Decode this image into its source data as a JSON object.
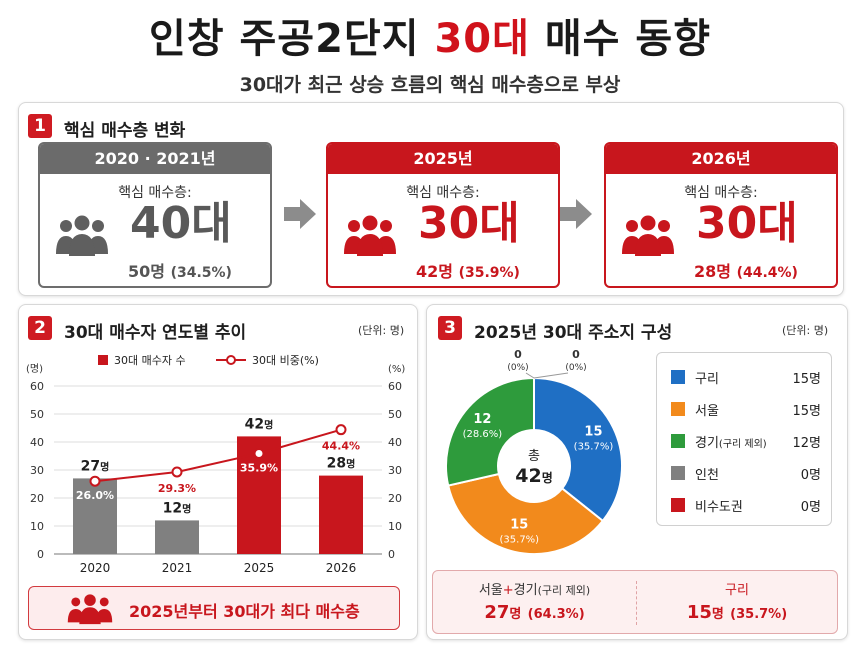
{
  "header": {
    "title_a": "인창 주공2단지",
    "title_accent": "30대",
    "title_b": "매수 동향",
    "subtitle": "30대가 최근 상승 흐름의 핵심 매수층으로 부상"
  },
  "section1": {
    "num": "1",
    "title": "핵심 매수층 변화",
    "cards": [
      {
        "year": "2020 · 2021년",
        "label": "핵심 매수층:",
        "group": "40대",
        "count": "50명",
        "pct": "(34.5%)",
        "style": "gray"
      },
      {
        "year": "2025년",
        "label": "핵심 매수층:",
        "group": "30대",
        "count": "42명",
        "pct": "(35.9%)",
        "style": "red"
      },
      {
        "year": "2026년",
        "label": "핵심 매수층:",
        "group": "30대",
        "count": "28명",
        "pct": "(44.4%)",
        "style": "red"
      }
    ]
  },
  "section2": {
    "num": "2",
    "title": "30대 매수자 연도별 추이",
    "unit": "(단위: 명)",
    "banner": "2025년부터 30대가 최다 매수층"
  },
  "section3": {
    "num": "3",
    "title": "2025년 30대 주소지 구성",
    "unit": "(단위: 명)",
    "legend": [
      {
        "name": "구리",
        "note": "",
        "value": "15명",
        "color": "#1f6fc4"
      },
      {
        "name": "서울",
        "note": "",
        "value": "15명",
        "color": "#f28a1c"
      },
      {
        "name": "경기",
        "note": "(구리 제외)",
        "value": "12명",
        "color": "#2e9b3c"
      },
      {
        "name": "인천",
        "note": "",
        "value": "0명",
        "color": "#808080"
      },
      {
        "name": "비수도권",
        "note": "",
        "value": "0명",
        "color": "#c8161d"
      }
    ],
    "summary": [
      {
        "label_a": "서울",
        "label_plus": "+",
        "label_b": "경기",
        "label_note": "(구리 제외)",
        "value": "27",
        "unit": "명",
        "pct": "(64.3%)"
      },
      {
        "label_a": "구리",
        "label_plus": "",
        "label_b": "",
        "label_note": "",
        "value": "15",
        "unit": "명",
        "pct": "(35.7%)"
      }
    ]
  },
  "colors": {
    "red": "#c8161d",
    "gray": "#6b6b6b",
    "blue": "#1f6fc4",
    "orange": "#f28a1c",
    "green": "#2e9b3c"
  },
  "chart_data": [
    {
      "type": "bar",
      "categories": [
        "2020",
        "2021",
        "2025",
        "2026"
      ],
      "series": [
        {
          "name": "30대 매수자 수",
          "axis": "left",
          "values": [
            27,
            12,
            42,
            28
          ],
          "labels": [
            "27명",
            "12명",
            "42명",
            "28명"
          ],
          "colors": [
            "#808080",
            "#808080",
            "#c8161d",
            "#c8161d"
          ]
        },
        {
          "name": "30대 비중(%)",
          "axis": "right",
          "type": "line",
          "values": [
            26.0,
            29.3,
            35.9,
            44.4
          ],
          "labels": [
            "26.0%",
            "29.3%",
            "35.9%",
            "44.4%"
          ],
          "color": "#c8161d"
        }
      ],
      "ylabel_left": "(명)",
      "ylabel_right": "(%)",
      "ylim": [
        0,
        60
      ],
      "yticks": [
        0,
        10,
        20,
        30,
        40,
        50,
        60
      ],
      "grid": true,
      "legend": "top"
    },
    {
      "type": "pie",
      "donut": true,
      "center_label": "총",
      "center_value": "42명",
      "slices": [
        {
          "name": "구리",
          "value": 15,
          "label": "15",
          "pct": "(35.7%)",
          "color": "#1f6fc4"
        },
        {
          "name": "서울",
          "value": 15,
          "label": "15",
          "pct": "(35.7%)",
          "color": "#f28a1c"
        },
        {
          "name": "경기",
          "value": 12,
          "label": "12",
          "pct": "(28.6%)",
          "color": "#2e9b3c"
        },
        {
          "name": "인천",
          "value": 0,
          "label": "0",
          "pct": "(0%)",
          "color": "#808080"
        },
        {
          "name": "비수도권",
          "value": 0,
          "label": "0",
          "pct": "(0%)",
          "color": "#c8161d"
        }
      ]
    }
  ]
}
